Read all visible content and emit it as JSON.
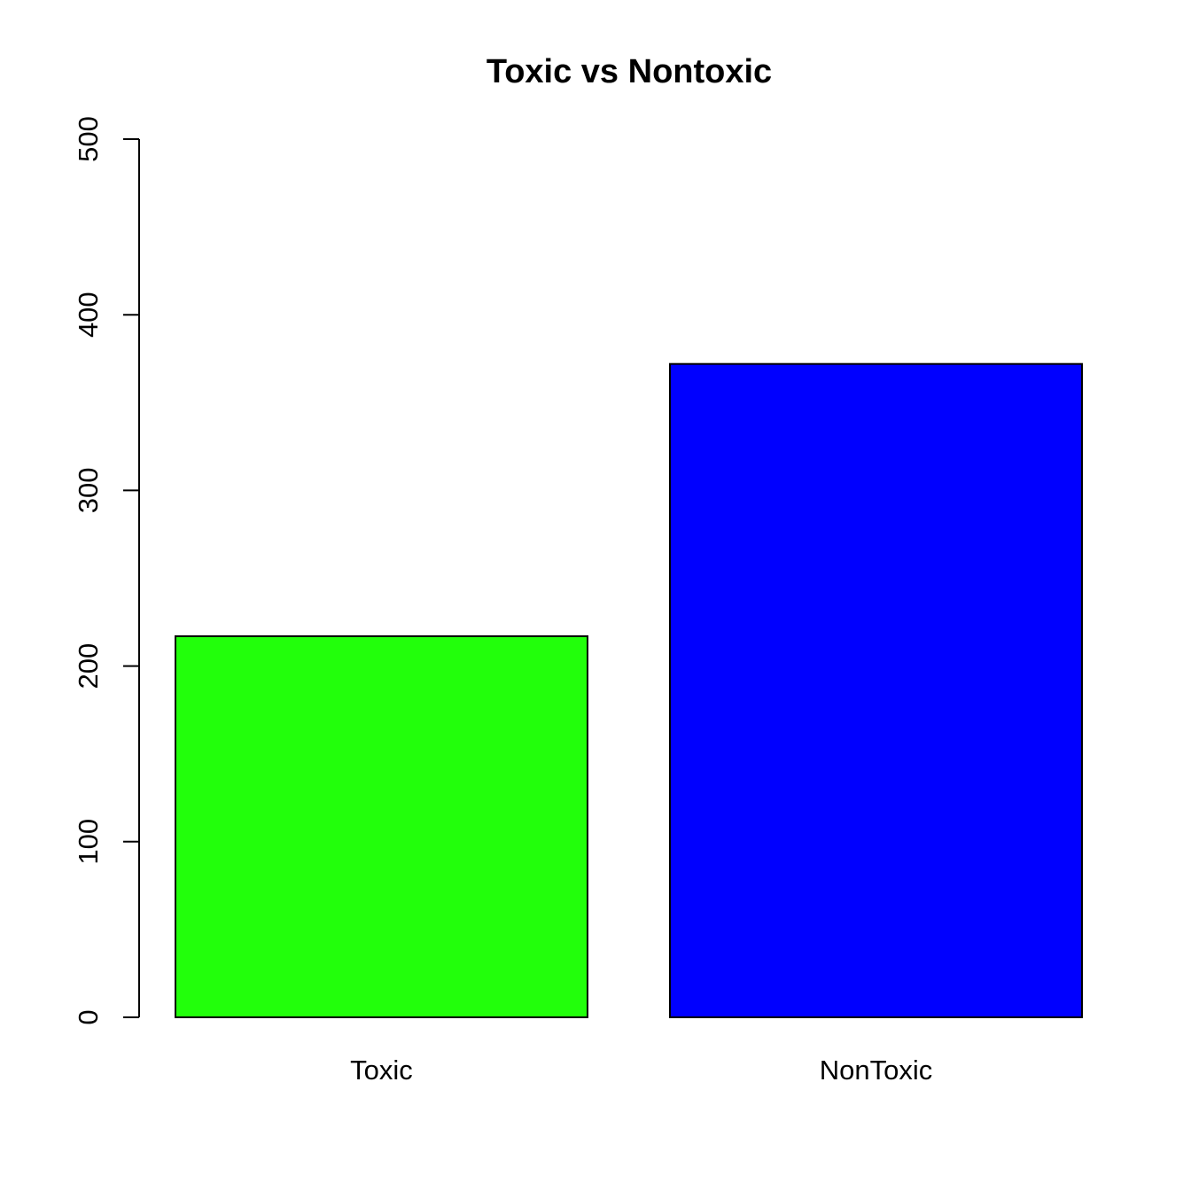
{
  "chart_data": {
    "type": "bar",
    "title": "Toxic vs Nontoxic",
    "xlabel": "",
    "ylabel": "",
    "categories": [
      "Toxic",
      "NonToxic"
    ],
    "values": [
      217,
      372
    ],
    "colors": [
      "#22ff0b",
      "#0000ff"
    ],
    "ylim": [
      0,
      500
    ],
    "yticks": [
      0,
      100,
      200,
      300,
      400,
      500
    ],
    "grid": false,
    "legend": "none"
  }
}
